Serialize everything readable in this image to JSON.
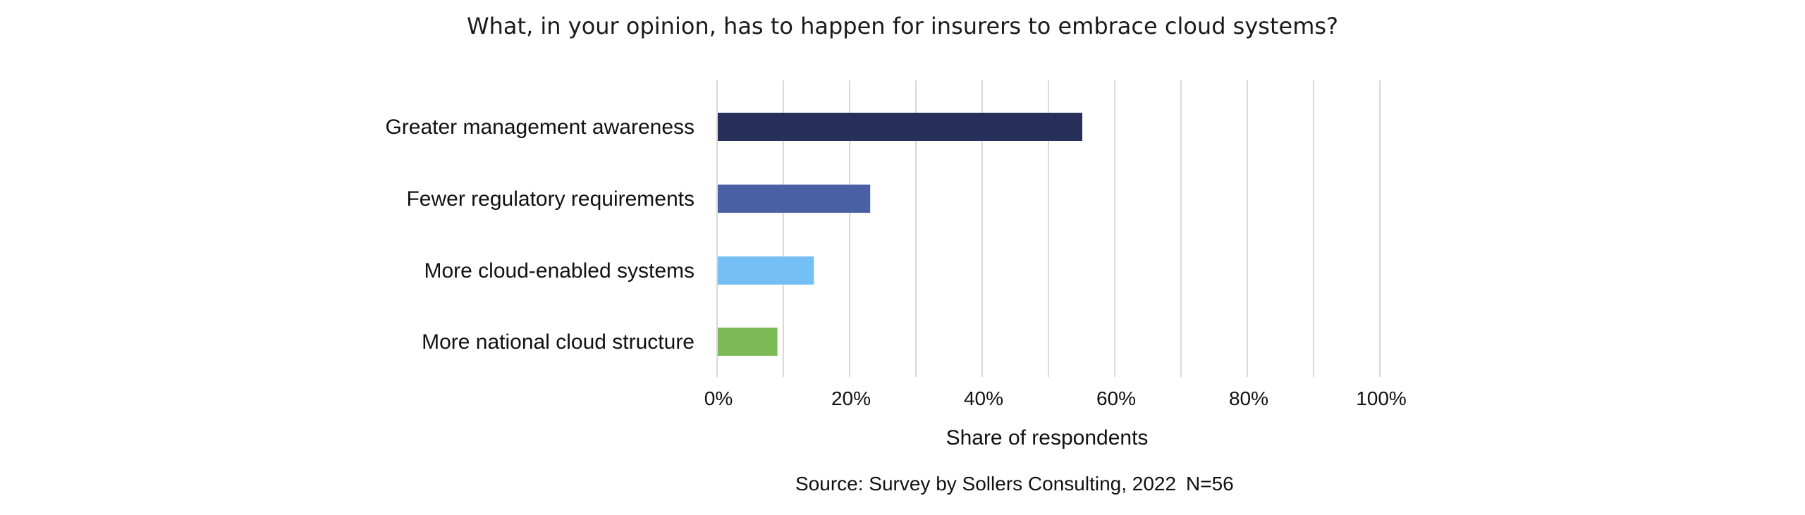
{
  "chart_data": {
    "type": "bar",
    "orientation": "horizontal",
    "title": "What, in your opinion, has to happen for insurers to embrace cloud systems?",
    "categories": [
      "Greater management awareness",
      "Fewer regulatory requirements",
      "More cloud-enabled systems",
      "More national cloud structure"
    ],
    "values": [
      55,
      23,
      14.5,
      9
    ],
    "colors": [
      "#27305a",
      "#4a60a5",
      "#74c0f5",
      "#7cba58"
    ],
    "xlabel": "Share of respondents",
    "xlim": [
      0,
      100
    ],
    "xticks": [
      "0%",
      "20%",
      "40%",
      "60%",
      "80%",
      "100%"
    ],
    "grid": "vertical",
    "gridline_color": "#d9d9d9"
  },
  "footer": {
    "source": "Source: Survey by Sollers Consulting, 2022",
    "n": "N=56"
  }
}
